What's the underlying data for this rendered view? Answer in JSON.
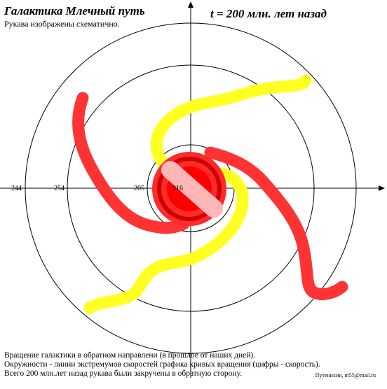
{
  "title": "Галактика Млечный путь",
  "time_label": "t = 200 млн. лет назад",
  "subtitle": "Рукава изображены схематично.",
  "ring_labels": [
    "244",
    "254",
    "205",
    "216"
  ],
  "notes": [
    "Вращение галактики в обратном направлени (в прошлое от наших дней).",
    "Окружности - линии экстремумов скоростей графика кривых вращения (цифры - скорость).",
    "Всего 200 млн.лет назад рукава были закручены в обратную сторону."
  ],
  "credit": "Путенихин, m55@mail.ru",
  "colors": {
    "red_arm": "#ff3333",
    "yellow_arm": "#ffff22",
    "core": "#ff0000",
    "bar": "#ffb6b6"
  }
}
